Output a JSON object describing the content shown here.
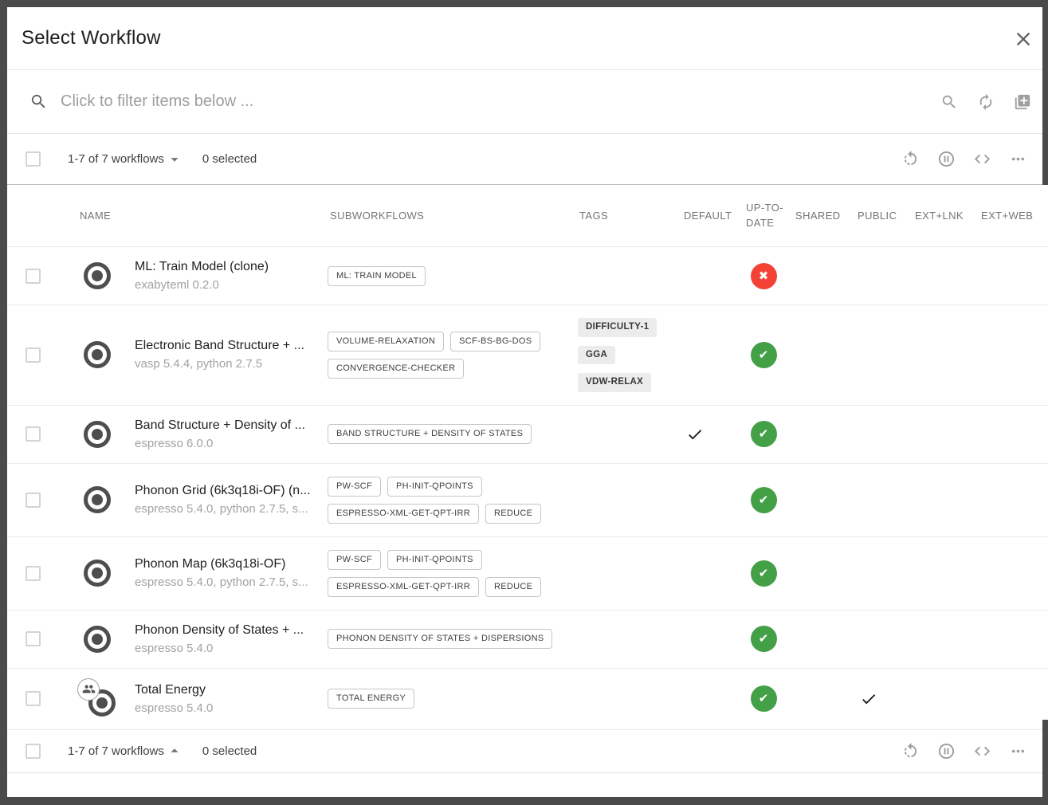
{
  "dialog": {
    "title": "Select Workflow"
  },
  "filter": {
    "placeholder": "Click to filter items below ..."
  },
  "pager_top": {
    "range": "1-7 of 7 workflows",
    "selected": "0 selected"
  },
  "pager_bottom": {
    "range": "1-7 of 7 workflows",
    "selected": "0 selected"
  },
  "table": {
    "columns": [
      "NAME",
      "SUBWORKFLOWS",
      "TAGS",
      "DEFAULT",
      "UP-TO-DATE",
      "SHARED",
      "PUBLIC",
      "EXT+LNK",
      "EXT+WEB"
    ],
    "rows": [
      {
        "name": "ML: Train Model (clone)",
        "apps": "exabyteml 0.2.0",
        "subworkflows": [
          "ML: TRAIN MODEL"
        ],
        "tags": [],
        "default": false,
        "up_to_date": false,
        "shared": false,
        "public": false,
        "shared_users_icon": false
      },
      {
        "name": "Electronic Band Structure + ...",
        "apps": "vasp 5.4.4, python 2.7.5",
        "subworkflows": [
          "VOLUME-RELAXATION",
          "SCF-BS-BG-DOS",
          "CONVERGENCE-CHECKER"
        ],
        "tags": [
          "DIFFICULTY-1",
          "GGA",
          "VDW-RELAX"
        ],
        "default": false,
        "up_to_date": true,
        "shared": false,
        "public": false,
        "shared_users_icon": false
      },
      {
        "name": "Band Structure + Density of ...",
        "apps": "espresso 6.0.0",
        "subworkflows": [
          "BAND STRUCTURE + DENSITY OF STATES"
        ],
        "tags": [],
        "default": true,
        "up_to_date": true,
        "shared": false,
        "public": false,
        "shared_users_icon": false
      },
      {
        "name": "Phonon Grid (6k3q18i-OF) (n...",
        "apps": "espresso 5.4.0, python 2.7.5, s...",
        "subworkflows": [
          "PW-SCF",
          "PH-INIT-QPOINTS",
          "ESPRESSO-XML-GET-QPT-IRR",
          "REDUCE"
        ],
        "tags": [],
        "default": false,
        "up_to_date": true,
        "shared": false,
        "public": false,
        "shared_users_icon": false
      },
      {
        "name": "Phonon Map (6k3q18i-OF)",
        "apps": "espresso 5.4.0, python 2.7.5, s...",
        "subworkflows": [
          "PW-SCF",
          "PH-INIT-QPOINTS",
          "ESPRESSO-XML-GET-QPT-IRR",
          "REDUCE"
        ],
        "tags": [],
        "default": false,
        "up_to_date": true,
        "shared": false,
        "public": false,
        "shared_users_icon": false
      },
      {
        "name": "Phonon Density of States + ...",
        "apps": "espresso 5.4.0",
        "subworkflows": [
          "PHONON DENSITY OF STATES + DISPERSIONS"
        ],
        "tags": [],
        "default": false,
        "up_to_date": true,
        "shared": false,
        "public": false,
        "shared_users_icon": false
      },
      {
        "name": "Total Energy",
        "apps": "espresso 5.4.0",
        "subworkflows": [
          "TOTAL ENERGY"
        ],
        "tags": [],
        "default": false,
        "up_to_date": true,
        "shared": false,
        "public": true,
        "shared_users_icon": true
      }
    ]
  },
  "badges": {
    "up_to_date_glyph": "✔",
    "out_of_date_glyph": "✖"
  },
  "colors": {
    "up_to_date_green": "#43a047",
    "out_of_date_red": "#f44336",
    "backdrop": "#4a4a4a"
  }
}
